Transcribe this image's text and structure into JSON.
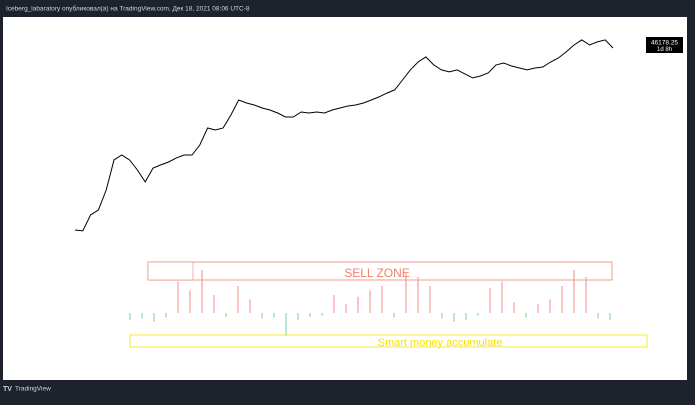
{
  "chart_data": {
    "type": "line",
    "header": "Iceberg_labaratory опубликовал(а) на TradingView.com, Дек 18, 2021 08:06 UTC-8",
    "log_scale": true,
    "ylim": [
      150,
      80000
    ],
    "series": [
      {
        "color": "#000000",
        "values": [
          180,
          175,
          285,
          331,
          610,
          1520,
          1770,
          1520,
          1120,
          780,
          1190,
          1310,
          1430,
          1620,
          1770,
          1770,
          2400,
          4040,
          3800,
          4040,
          6000,
          9480,
          8650,
          8140,
          7430,
          6990,
          6380,
          5640,
          5640,
          6570,
          6380,
          6570,
          6380,
          6990,
          7430,
          7890,
          8140,
          8650,
          9480,
          10400,
          11700,
          12900,
          17400,
          23700,
          30200,
          35200,
          27600,
          23700,
          22300,
          23700,
          21000,
          18600,
          19700,
          21600,
          27600,
          29300,
          26700,
          25100,
          23700,
          25100,
          25900,
          30200,
          34100,
          41000,
          50700,
          59100,
          50700,
          55600,
          59100,
          46178.25
        ]
      }
    ],
    "countdown": "1d 8h",
    "oscillator": {
      "ylim": [
        -40,
        55
      ],
      "positive_color": "#f4a09a",
      "negative_color": "#8fd4a6",
      "values": [
        -8,
        -6,
        -10,
        -5,
        35,
        25,
        48,
        20,
        -4,
        30,
        15,
        -6,
        -5,
        -25,
        -8,
        -4,
        -3,
        20,
        10,
        18,
        25,
        30,
        -5,
        45,
        40,
        30,
        -6,
        -10,
        -8,
        -3,
        28,
        35,
        12,
        -5,
        10,
        15,
        30,
        48,
        40,
        -6,
        -8
      ]
    },
    "annotations": [
      "SELL ZONE",
      "Smart money accumulate"
    ],
    "brand": "TradingView"
  }
}
